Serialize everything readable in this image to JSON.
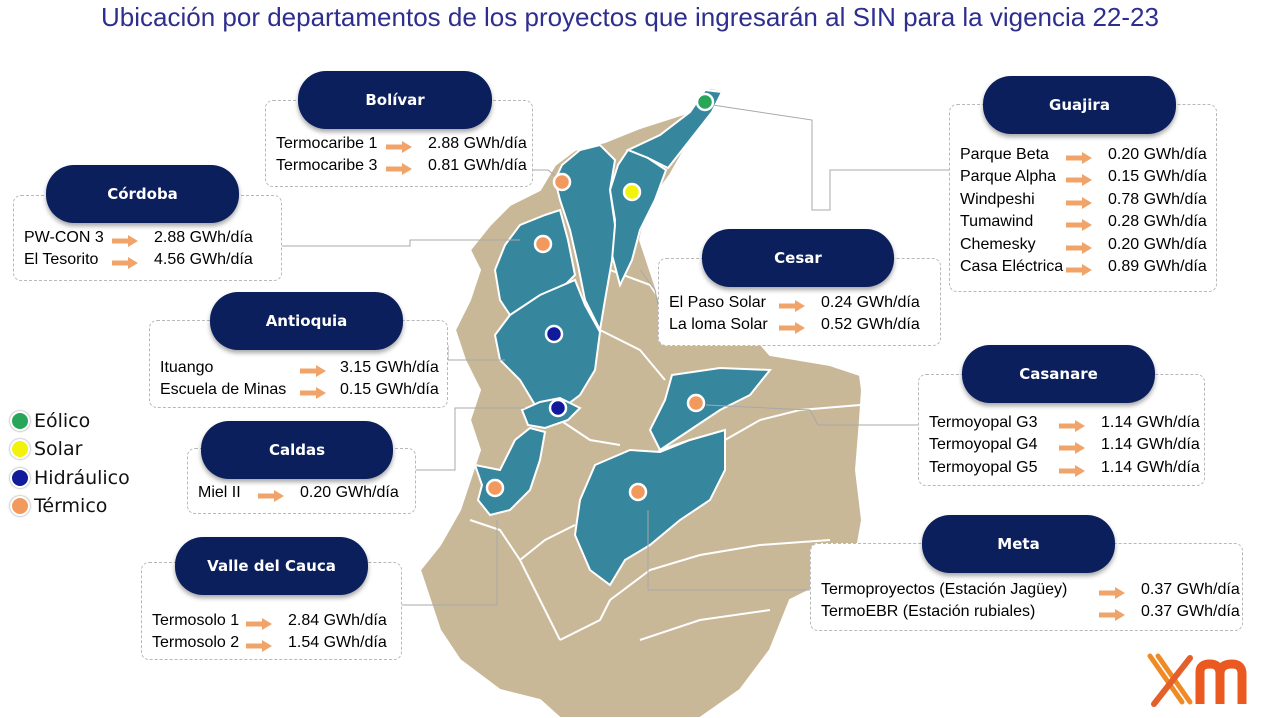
{
  "title": "Ubicación por departamentos de los proyectos que ingresarán al SIN para la vigencia 22-23",
  "colors": {
    "title": "#2e2e8f",
    "pill_bg": "#0b1f5c",
    "region_highlight": "#36869e",
    "region_base": "#c8b898",
    "arrow": "#f0a46a",
    "eolico": "#27a65a",
    "solar": "#f2f20a",
    "hidraulico": "#121a9c",
    "termico": "#f29a5e"
  },
  "legend": [
    {
      "label": "Eólico",
      "color": "#27a65a"
    },
    {
      "label": "Solar",
      "color": "#f2f20a"
    },
    {
      "label": "Hidráulico",
      "color": "#121a9c"
    },
    {
      "label": "Térmico",
      "color": "#f29a5e"
    }
  ],
  "departments": [
    {
      "key": "bolivar",
      "name": "Bolívar",
      "projects": [
        {
          "name": "Termocaribe 1",
          "value": "2.88 GWh/día"
        },
        {
          "name": "Termocaribe 3",
          "value": "0.81 GWh/día"
        }
      ]
    },
    {
      "key": "cordoba",
      "name": "Córdoba",
      "projects": [
        {
          "name": "PW-CON 3",
          "value": "2.88 GWh/día"
        },
        {
          "name": "El Tesorito",
          "value": "4.56 GWh/día"
        }
      ]
    },
    {
      "key": "antioquia",
      "name": "Antioquia",
      "projects": [
        {
          "name": "Ituango",
          "value": "3.15 GWh/día"
        },
        {
          "name": "Escuela de Minas",
          "value": "0.15 GWh/día"
        }
      ]
    },
    {
      "key": "caldas",
      "name": "Caldas",
      "projects": [
        {
          "name": "Miel II",
          "value": "0.20 GWh/día"
        }
      ]
    },
    {
      "key": "valle",
      "name": "Valle del Cauca",
      "projects": [
        {
          "name": "Termosolo 1",
          "value": "2.84 GWh/día"
        },
        {
          "name": "Termosolo 2",
          "value": "1.54 GWh/día"
        }
      ]
    },
    {
      "key": "guajira",
      "name": "Guajira",
      "projects": [
        {
          "name": "Parque Beta",
          "value": "0.20 GWh/día"
        },
        {
          "name": "Parque Alpha",
          "value": "0.15 GWh/día"
        },
        {
          "name": "Windpeshi",
          "value": "0.78 GWh/día"
        },
        {
          "name": "Tumawind",
          "value": "0.28 GWh/día"
        },
        {
          "name": "Chemesky",
          "value": "0.20 GWh/día"
        },
        {
          "name": "Casa Eléctrica",
          "value": "0.89 GWh/día"
        }
      ]
    },
    {
      "key": "cesar",
      "name": "Cesar",
      "projects": [
        {
          "name": "El Paso Solar",
          "value": "0.24 GWh/día"
        },
        {
          "name": "La loma Solar",
          "value": "0.52 GWh/día"
        }
      ]
    },
    {
      "key": "casanare",
      "name": "Casanare",
      "projects": [
        {
          "name": "Termoyopal G3",
          "value": "1.14 GWh/día"
        },
        {
          "name": "Termoyopal G4",
          "value": "1.14 GWh/día"
        },
        {
          "name": "Termoyopal G5",
          "value": "1.14 GWh/día"
        }
      ]
    },
    {
      "key": "meta",
      "name": "Meta",
      "projects": [
        {
          "name": "Termoproyectos (Estación Jagüey)",
          "value": "0.37 GWh/día"
        },
        {
          "name": "TermoEBR (Estación rubiales)",
          "value": "0.37 GWh/día"
        }
      ]
    }
  ],
  "markers": [
    {
      "department": "guajira",
      "type": "eolico"
    },
    {
      "department": "cesar",
      "type": "solar"
    },
    {
      "department": "bolivar",
      "type": "termico"
    },
    {
      "department": "cordoba",
      "type": "termico"
    },
    {
      "department": "antioquia",
      "type": "hidraulico"
    },
    {
      "department": "caldas",
      "type": "hidraulico"
    },
    {
      "department": "valle",
      "type": "termico"
    },
    {
      "department": "casanare",
      "type": "termico"
    },
    {
      "department": "meta",
      "type": "termico"
    }
  ]
}
